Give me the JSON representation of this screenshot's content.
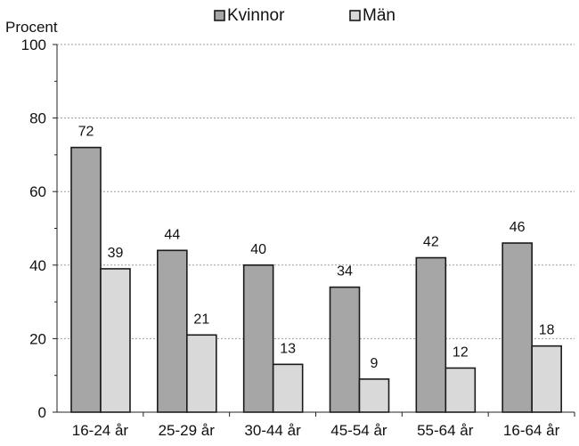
{
  "chart_data": {
    "type": "bar",
    "ylabel": "Procent",
    "ylim": [
      0,
      100
    ],
    "yticks": [
      0,
      20,
      40,
      60,
      80,
      100
    ],
    "grid": true,
    "legend_position": "top",
    "categories": [
      "16-24 år",
      "25-29 år",
      "30-44 år",
      "45-54 år",
      "55-64 år",
      "16-64 år"
    ],
    "series": [
      {
        "name": "Kvinnor",
        "values": [
          72,
          44,
          40,
          34,
          42,
          46
        ],
        "color": "#a6a6a6"
      },
      {
        "name": "Män",
        "values": [
          39,
          21,
          13,
          9,
          12,
          18
        ],
        "color": "#d9d9d9"
      }
    ],
    "data_labels": {
      "Kvinnor": [
        "72",
        "44",
        "40",
        "34",
        "42",
        "46"
      ],
      "Män": [
        "39",
        "21",
        "13",
        "9",
        "12",
        "18"
      ]
    }
  }
}
